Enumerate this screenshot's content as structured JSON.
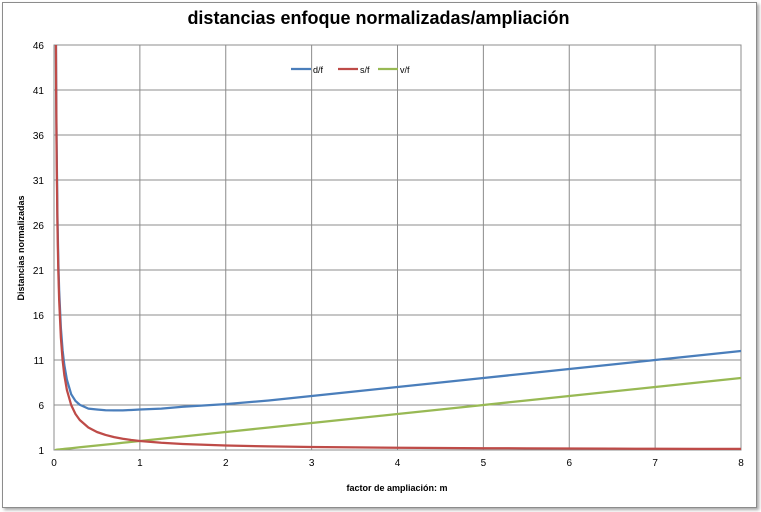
{
  "chart_data": {
    "type": "line",
    "title": "distancias enfoque normalizadas/ampliación",
    "xlabel": "factor de ampliación:  m",
    "ylabel": "Distancias  normalizadas",
    "xlim": [
      0,
      8
    ],
    "ylim": [
      1,
      46
    ],
    "x_ticks": [
      "0",
      "1",
      "2",
      "3",
      "4",
      "5",
      "6",
      "7",
      "8"
    ],
    "y_ticks": [
      "1",
      "6",
      "11",
      "16",
      "21",
      "26",
      "31",
      "36",
      "41",
      "46"
    ],
    "grid": true,
    "legend_position": "top-center",
    "x": [
      0.02,
      0.025,
      0.03,
      0.04,
      0.05,
      0.06,
      0.08,
      0.1,
      0.12,
      0.15,
      0.2,
      0.25,
      0.3,
      0.4,
      0.5,
      0.6,
      0.7,
      0.8,
      0.9,
      1.0,
      1.25,
      1.5,
      2.0,
      2.5,
      3.0,
      3.5,
      4.0,
      4.5,
      5.0,
      5.5,
      6.0,
      6.5,
      7.0,
      7.5,
      8.0
    ],
    "series": [
      {
        "name": "d/f",
        "color": "#4a7ebb",
        "values": [
          52.02,
          42.03,
          35.36,
          27.04,
          22.05,
          18.73,
          14.58,
          12.1,
          10.45,
          8.82,
          7.2,
          6.45,
          6.03,
          5.6,
          5.5,
          5.42,
          5.4,
          5.4,
          5.45,
          5.5,
          5.6,
          5.8,
          6.1,
          6.5,
          7.0,
          7.5,
          8.0,
          8.5,
          9.0,
          9.5,
          10.0,
          10.5,
          11.0,
          11.5,
          12.0
        ]
      },
      {
        "name": "s/f",
        "color": "#be4b48",
        "values": [
          51.0,
          41.0,
          34.33,
          26.0,
          21.0,
          17.67,
          13.5,
          11.0,
          9.33,
          7.67,
          6.0,
          5.0,
          4.33,
          3.5,
          3.0,
          2.67,
          2.43,
          2.25,
          2.11,
          2.0,
          1.8,
          1.67,
          1.5,
          1.4,
          1.33,
          1.29,
          1.25,
          1.22,
          1.2,
          1.18,
          1.17,
          1.15,
          1.14,
          1.13,
          1.13
        ]
      },
      {
        "name": "v/f",
        "color": "#98b954",
        "values": [
          1.02,
          1.025,
          1.03,
          1.04,
          1.05,
          1.06,
          1.08,
          1.1,
          1.12,
          1.15,
          1.2,
          1.25,
          1.3,
          1.4,
          1.5,
          1.6,
          1.7,
          1.8,
          1.9,
          2.0,
          2.25,
          2.5,
          3.0,
          3.5,
          4.0,
          4.5,
          5.0,
          5.5,
          6.0,
          6.5,
          7.0,
          7.5,
          8.0,
          8.5,
          9.0
        ]
      }
    ]
  }
}
